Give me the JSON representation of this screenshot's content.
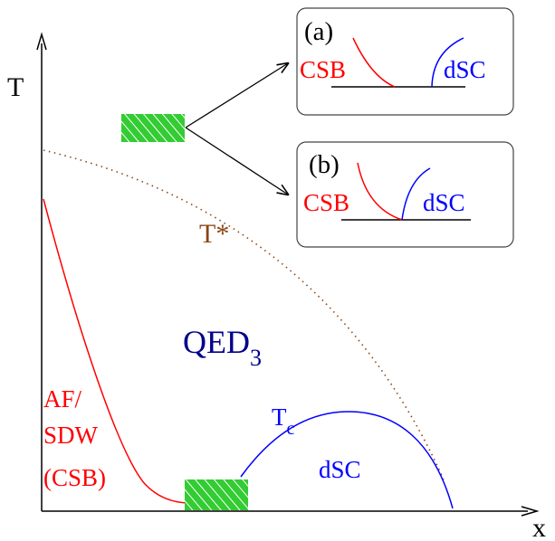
{
  "axes": {
    "y_label": "T",
    "x_label": "x"
  },
  "regions": {
    "afm_label_line1": "AF/",
    "afm_label_line2": "SDW",
    "afm_label_line3": "(CSB)",
    "qed_label": "QED",
    "qed_subscript": "3",
    "tstar_label": "T*",
    "tc_label": "T",
    "tc_subscript": "c",
    "dsc_label": "dSC"
  },
  "insets": [
    {
      "tag": "(a)",
      "left_label": "CSB",
      "right_label": "dSC"
    },
    {
      "tag": "(b)",
      "left_label": "CSB",
      "right_label": "dSC"
    }
  ],
  "colors": {
    "axis": "#000000",
    "csb": "#ff0000",
    "dsc": "#0000ff",
    "qed": "#00008b",
    "tstar": "#8b4513",
    "hatch_fill": "#33cc33",
    "hatch_line": "#ffffff"
  }
}
